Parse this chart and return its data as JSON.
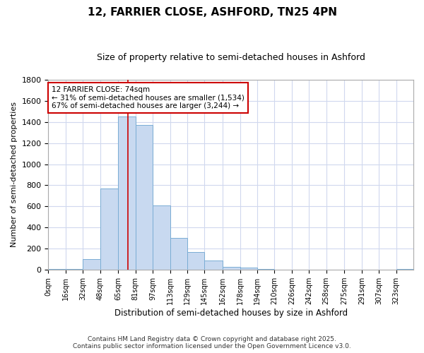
{
  "title": "12, FARRIER CLOSE, ASHFORD, TN25 4PN",
  "subtitle": "Size of property relative to semi-detached houses in Ashford",
  "xlabel": "Distribution of semi-detached houses by size in Ashford",
  "ylabel": "Number of semi-detached properties",
  "bin_edges": [
    0,
    16,
    32,
    48,
    65,
    81,
    97,
    113,
    129,
    145,
    162,
    178,
    194,
    210,
    226,
    242,
    258,
    275,
    291,
    307,
    323,
    339
  ],
  "bin_labels": [
    "0sqm",
    "16sqm",
    "32sqm",
    "48sqm",
    "65sqm",
    "81sqm",
    "97sqm",
    "113sqm",
    "129sqm",
    "145sqm",
    "162sqm",
    "178sqm",
    "194sqm",
    "210sqm",
    "226sqm",
    "242sqm",
    "258sqm",
    "275sqm",
    "291sqm",
    "307sqm",
    "323sqm"
  ],
  "bar_heights": [
    5,
    8,
    100,
    770,
    1450,
    1370,
    610,
    300,
    170,
    90,
    30,
    20,
    5,
    0,
    0,
    0,
    0,
    0,
    0,
    0,
    10
  ],
  "bar_color": "#c8d9f0",
  "bar_edge_color": "#7aadd4",
  "property_value": 74,
  "annotation_title": "12 FARRIER CLOSE: 74sqm",
  "annotation_line1": "← 31% of semi-detached houses are smaller (1,534)",
  "annotation_line2": "67% of semi-detached houses are larger (3,244) →",
  "annotation_box_color": "#ffffff",
  "annotation_box_edge": "#cc0000",
  "vline_color": "#cc0000",
  "bg_color": "#ffffff",
  "plot_bg_color": "#ffffff",
  "grid_color": "#d0d8ee",
  "footer_line1": "Contains HM Land Registry data © Crown copyright and database right 2025.",
  "footer_line2": "Contains public sector information licensed under the Open Government Licence v3.0.",
  "ylim": [
    0,
    1800
  ],
  "yticks": [
    0,
    200,
    400,
    600,
    800,
    1000,
    1200,
    1400,
    1600,
    1800
  ]
}
